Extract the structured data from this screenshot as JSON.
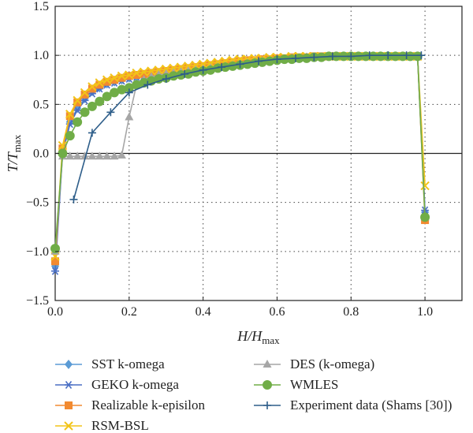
{
  "chart_data": {
    "type": "line",
    "xlabel": {
      "var": "H/H",
      "sub": "max"
    },
    "ylabel": {
      "var": "T/T",
      "sub": "max"
    },
    "xlim": [
      0,
      1.1
    ],
    "ylim": [
      -1.5,
      1.5
    ],
    "xticks": [
      0,
      0.2,
      0.4,
      0.6,
      0.8,
      1.0
    ],
    "xtick_labels": [
      "0.0",
      "0.2",
      "0.4",
      "0.6",
      "0.8",
      "1.0"
    ],
    "yticks": [
      -1.5,
      -1.0,
      -0.5,
      0.0,
      0.5,
      1.0,
      1.5
    ],
    "ytick_labels": [
      "−1.5",
      "−1.0",
      "−0.5",
      "0.0",
      "0.5",
      "1.0",
      "1.5"
    ],
    "grid": "dotted",
    "zero_line": true,
    "legend_position": "below",
    "series": [
      {
        "name": "SST k-omega",
        "color": "#5b9bd5",
        "marker": "diamond",
        "x": [
          0.0,
          0.02,
          0.04,
          0.06,
          0.08,
          0.1,
          0.12,
          0.14,
          0.16,
          0.18,
          0.2,
          0.22,
          0.24,
          0.26,
          0.28,
          0.3,
          0.32,
          0.34,
          0.36,
          0.38,
          0.4,
          0.42,
          0.44,
          0.46,
          0.48,
          0.5,
          0.52,
          0.54,
          0.56,
          0.58,
          0.6,
          0.62,
          0.64,
          0.66,
          0.68,
          0.7,
          0.72,
          0.74,
          0.76,
          0.78,
          0.8,
          0.82,
          0.84,
          0.86,
          0.88,
          0.9,
          0.92,
          0.94,
          0.96,
          0.98,
          1.0
        ],
        "y": [
          -1.15,
          0.02,
          0.32,
          0.46,
          0.56,
          0.63,
          0.67,
          0.71,
          0.73,
          0.75,
          0.77,
          0.78,
          0.79,
          0.8,
          0.81,
          0.82,
          0.83,
          0.84,
          0.85,
          0.86,
          0.87,
          0.88,
          0.89,
          0.9,
          0.91,
          0.92,
          0.93,
          0.94,
          0.95,
          0.95,
          0.96,
          0.96,
          0.97,
          0.97,
          0.98,
          0.98,
          0.98,
          0.99,
          0.99,
          0.99,
          0.99,
          0.99,
          0.99,
          0.99,
          0.99,
          0.99,
          0.99,
          0.99,
          0.99,
          0.99,
          -0.6
        ]
      },
      {
        "name": "GEKO k-omega",
        "color": "#4a6fc4",
        "marker": "asterisk",
        "x": [
          0.0,
          0.02,
          0.04,
          0.06,
          0.08,
          0.1,
          0.12,
          0.14,
          0.16,
          0.18,
          0.2,
          0.22,
          0.24,
          0.26,
          0.28,
          0.3,
          0.32,
          0.34,
          0.36,
          0.38,
          0.4,
          0.42,
          0.44,
          0.46,
          0.48,
          0.5,
          0.52,
          0.54,
          0.56,
          0.58,
          0.6,
          0.62,
          0.64,
          0.66,
          0.68,
          0.7,
          0.72,
          0.74,
          0.76,
          0.78,
          0.8,
          0.82,
          0.84,
          0.86,
          0.88,
          0.9,
          0.92,
          0.94,
          0.96,
          0.98,
          1.0
        ],
        "y": [
          -1.2,
          0.0,
          0.3,
          0.44,
          0.54,
          0.61,
          0.66,
          0.7,
          0.72,
          0.74,
          0.76,
          0.78,
          0.79,
          0.8,
          0.81,
          0.82,
          0.83,
          0.84,
          0.85,
          0.86,
          0.87,
          0.88,
          0.89,
          0.9,
          0.91,
          0.92,
          0.93,
          0.94,
          0.95,
          0.95,
          0.96,
          0.96,
          0.97,
          0.97,
          0.98,
          0.98,
          0.98,
          0.99,
          0.99,
          0.99,
          0.99,
          0.99,
          0.99,
          0.99,
          0.99,
          0.99,
          0.99,
          0.99,
          0.99,
          0.99,
          -0.58
        ]
      },
      {
        "name": "Realizable k-episilon",
        "color": "#f28a30",
        "marker": "square",
        "x": [
          0.0,
          0.02,
          0.04,
          0.06,
          0.08,
          0.1,
          0.12,
          0.14,
          0.16,
          0.18,
          0.2,
          0.22,
          0.24,
          0.26,
          0.28,
          0.3,
          0.32,
          0.34,
          0.36,
          0.38,
          0.4,
          0.42,
          0.44,
          0.46,
          0.48,
          0.5,
          0.52,
          0.54,
          0.56,
          0.58,
          0.6,
          0.62,
          0.64,
          0.66,
          0.68,
          0.7,
          0.72,
          0.74,
          0.76,
          0.78,
          0.8,
          0.82,
          0.84,
          0.86,
          0.88,
          0.9,
          0.92,
          0.94,
          0.96,
          0.98,
          1.0
        ],
        "y": [
          -1.1,
          0.05,
          0.38,
          0.52,
          0.6,
          0.66,
          0.7,
          0.73,
          0.75,
          0.77,
          0.79,
          0.8,
          0.81,
          0.82,
          0.83,
          0.84,
          0.85,
          0.86,
          0.87,
          0.88,
          0.89,
          0.9,
          0.91,
          0.92,
          0.93,
          0.94,
          0.95,
          0.95,
          0.96,
          0.96,
          0.97,
          0.97,
          0.98,
          0.98,
          0.98,
          0.99,
          0.99,
          0.99,
          0.99,
          0.99,
          0.99,
          0.99,
          0.99,
          0.99,
          0.99,
          0.99,
          0.99,
          0.99,
          0.99,
          0.99,
          -0.68
        ]
      },
      {
        "name": "RSM-BSL",
        "color": "#f2c418",
        "marker": "cross",
        "x": [
          0.0,
          0.02,
          0.04,
          0.06,
          0.08,
          0.1,
          0.12,
          0.14,
          0.16,
          0.18,
          0.2,
          0.22,
          0.24,
          0.26,
          0.28,
          0.3,
          0.32,
          0.34,
          0.36,
          0.38,
          0.4,
          0.42,
          0.44,
          0.46,
          0.48,
          0.5,
          0.52,
          0.54,
          0.56,
          0.58,
          0.6,
          0.62,
          0.64,
          0.66,
          0.68,
          0.7,
          0.72,
          0.74,
          0.76,
          0.78,
          0.8,
          0.82,
          0.84,
          0.86,
          0.88,
          0.9,
          0.92,
          0.94,
          0.96,
          0.98,
          1.0
        ],
        "y": [
          -1.05,
          0.08,
          0.4,
          0.54,
          0.62,
          0.68,
          0.72,
          0.75,
          0.77,
          0.79,
          0.8,
          0.82,
          0.83,
          0.84,
          0.85,
          0.86,
          0.87,
          0.88,
          0.89,
          0.9,
          0.91,
          0.92,
          0.93,
          0.94,
          0.95,
          0.96,
          0.96,
          0.97,
          0.97,
          0.98,
          0.98,
          0.98,
          0.99,
          0.99,
          0.99,
          0.99,
          0.99,
          0.99,
          0.99,
          0.99,
          0.99,
          0.99,
          0.99,
          0.99,
          0.99,
          0.99,
          0.99,
          0.99,
          0.99,
          0.99,
          -0.33
        ]
      },
      {
        "name": "DES (k-omega)",
        "color": "#a6a6a6",
        "marker": "triangle",
        "x": [
          0.0,
          0.02,
          0.04,
          0.06,
          0.08,
          0.1,
          0.12,
          0.14,
          0.16,
          0.18,
          0.2,
          0.22,
          0.24,
          0.26,
          0.28,
          0.3,
          0.32,
          0.34,
          0.36,
          0.38,
          0.4,
          0.42,
          0.44,
          0.46,
          0.48,
          0.5,
          0.52,
          0.54,
          0.56,
          0.58,
          0.6,
          0.62,
          0.64,
          0.66,
          0.68,
          0.7,
          0.72,
          0.74,
          0.76,
          0.78,
          0.8,
          0.82,
          0.84,
          0.86,
          0.88,
          0.9,
          0.92,
          0.94,
          0.96,
          0.98,
          1.0
        ],
        "y": [
          -1.0,
          -0.03,
          -0.03,
          -0.03,
          -0.03,
          -0.03,
          -0.03,
          -0.03,
          -0.03,
          -0.02,
          0.37,
          0.7,
          0.75,
          0.78,
          0.8,
          0.81,
          0.82,
          0.83,
          0.84,
          0.85,
          0.86,
          0.87,
          0.88,
          0.89,
          0.9,
          0.91,
          0.92,
          0.93,
          0.94,
          0.95,
          0.96,
          0.96,
          0.97,
          0.97,
          0.98,
          0.98,
          0.98,
          0.99,
          0.99,
          0.99,
          0.99,
          0.99,
          0.99,
          0.99,
          0.99,
          0.99,
          0.99,
          0.99,
          0.99,
          0.99,
          -0.65
        ]
      },
      {
        "name": "WMLES",
        "color": "#70ad47",
        "marker": "circle",
        "x": [
          0.0,
          0.02,
          0.04,
          0.06,
          0.08,
          0.1,
          0.12,
          0.14,
          0.16,
          0.18,
          0.2,
          0.22,
          0.24,
          0.26,
          0.28,
          0.3,
          0.32,
          0.34,
          0.36,
          0.38,
          0.4,
          0.42,
          0.44,
          0.46,
          0.48,
          0.5,
          0.52,
          0.54,
          0.56,
          0.58,
          0.6,
          0.62,
          0.64,
          0.66,
          0.68,
          0.7,
          0.72,
          0.74,
          0.76,
          0.78,
          0.8,
          0.82,
          0.84,
          0.86,
          0.88,
          0.9,
          0.92,
          0.94,
          0.96,
          0.98,
          1.0
        ],
        "y": [
          -0.97,
          0.0,
          0.18,
          0.32,
          0.42,
          0.48,
          0.53,
          0.58,
          0.62,
          0.65,
          0.67,
          0.7,
          0.72,
          0.74,
          0.76,
          0.77,
          0.79,
          0.8,
          0.81,
          0.83,
          0.84,
          0.85,
          0.87,
          0.88,
          0.89,
          0.9,
          0.91,
          0.92,
          0.93,
          0.94,
          0.95,
          0.96,
          0.96,
          0.97,
          0.97,
          0.98,
          0.98,
          0.99,
          0.99,
          0.99,
          0.99,
          0.99,
          0.99,
          0.99,
          0.99,
          0.99,
          0.99,
          0.99,
          0.99,
          0.99,
          -0.65
        ]
      },
      {
        "name": "Experiment data (Shams [30])",
        "color": "#2e5e8a",
        "marker": "plus",
        "x": [
          0.05,
          0.1,
          0.15,
          0.2,
          0.25,
          0.3,
          0.35,
          0.4,
          0.45,
          0.5,
          0.55,
          0.6,
          0.65,
          0.7,
          0.75,
          0.8,
          0.85,
          0.9,
          0.95,
          0.99
        ],
        "y": [
          -0.47,
          0.21,
          0.42,
          0.62,
          0.7,
          0.76,
          0.81,
          0.85,
          0.88,
          0.91,
          0.94,
          0.96,
          0.97,
          0.98,
          0.99,
          0.99,
          1.0,
          1.0,
          1.0,
          1.0
        ]
      }
    ]
  }
}
